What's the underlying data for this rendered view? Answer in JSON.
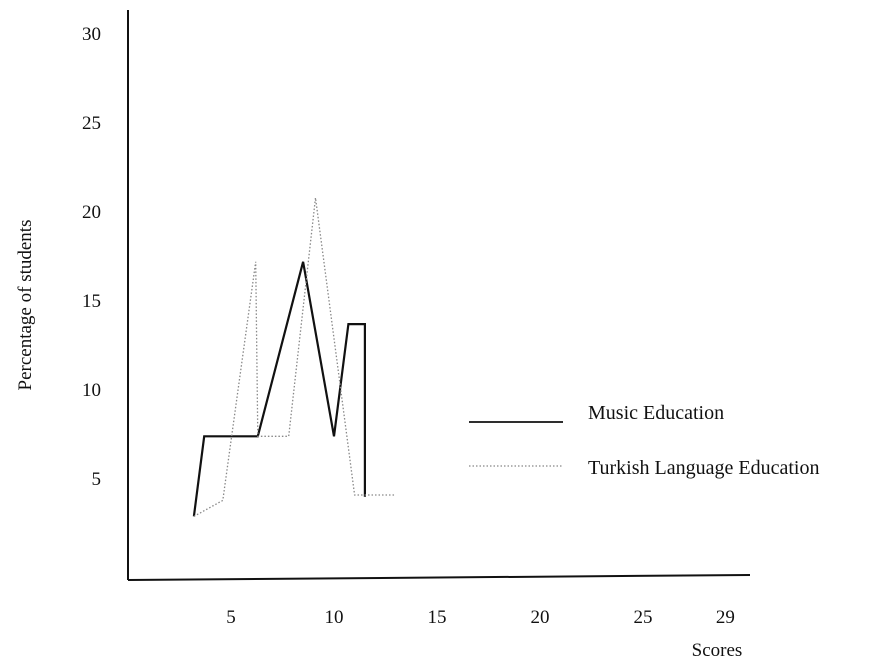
{
  "chart_data": {
    "type": "line",
    "title": "",
    "xlabel": "Scores",
    "ylabel": "Percentage of students",
    "xlim": [
      0,
      29
    ],
    "ylim": [
      0,
      31
    ],
    "x_ticks": [
      {
        "value": 5,
        "label": "5"
      },
      {
        "value": 10,
        "label": "10"
      },
      {
        "value": 15,
        "label": "15"
      },
      {
        "value": 20,
        "label": "20"
      },
      {
        "value": 25,
        "label": "25"
      },
      {
        "value": 29,
        "label": "29"
      }
    ],
    "y_ticks": [
      {
        "value": 5,
        "label": "5"
      },
      {
        "value": 10,
        "label": "10"
      },
      {
        "value": 15,
        "label": "15"
      },
      {
        "value": 20,
        "label": "20"
      },
      {
        "value": 25,
        "label": "25"
      },
      {
        "value": 30,
        "label": "30"
      }
    ],
    "grid": false,
    "legend_position": "right",
    "series": [
      {
        "name": "Music Education",
        "style": "solid",
        "color": "#111111",
        "points": [
          [
            3.2,
            2.9
          ],
          [
            3.7,
            7.4
          ],
          [
            6.3,
            7.4
          ],
          [
            8.5,
            17.2
          ],
          [
            10.0,
            7.4
          ],
          [
            10.7,
            13.7
          ],
          [
            11.5,
            13.7
          ],
          [
            11.5,
            4.0
          ]
        ]
      },
      {
        "name": "Turkish Language Education",
        "style": "dotted",
        "color": "#888888",
        "points": [
          [
            3.2,
            2.9
          ],
          [
            4.6,
            3.8
          ],
          [
            6.2,
            17.2
          ],
          [
            6.3,
            7.4
          ],
          [
            7.8,
            7.4
          ],
          [
            9.1,
            20.8
          ],
          [
            11.0,
            4.1
          ],
          [
            13.0,
            4.1
          ]
        ]
      }
    ]
  }
}
